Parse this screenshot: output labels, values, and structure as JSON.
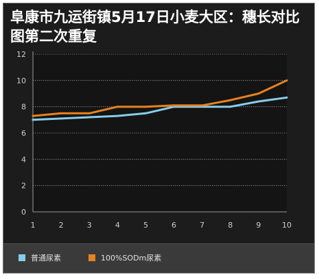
{
  "chart_data": {
    "type": "line",
    "title": "阜康市九运街镇5月17日小麦大区：穗长对比图第二次重复",
    "x": [
      1,
      2,
      3,
      4,
      5,
      6,
      7,
      8,
      9,
      10
    ],
    "series": [
      {
        "name": "普通尿素",
        "color": "#87ceeb",
        "values": [
          7.0,
          7.1,
          7.2,
          7.3,
          7.5,
          8.0,
          8.0,
          8.0,
          8.4,
          8.7
        ]
      },
      {
        "name": "100%SODm尿素",
        "color": "#e8821e",
        "values": [
          7.3,
          7.5,
          7.5,
          8.0,
          8.0,
          8.1,
          8.1,
          8.5,
          9.0,
          10.0
        ]
      }
    ],
    "ylim": [
      0,
      12
    ],
    "xlim": [
      1,
      10
    ],
    "y_ticks": [
      0,
      2,
      4,
      6,
      8,
      10,
      12
    ],
    "x_ticks": [
      1,
      2,
      3,
      4,
      5,
      6,
      7,
      8,
      9,
      10
    ],
    "grid": "horizontal dotted",
    "legend_position": "bottom-left"
  }
}
